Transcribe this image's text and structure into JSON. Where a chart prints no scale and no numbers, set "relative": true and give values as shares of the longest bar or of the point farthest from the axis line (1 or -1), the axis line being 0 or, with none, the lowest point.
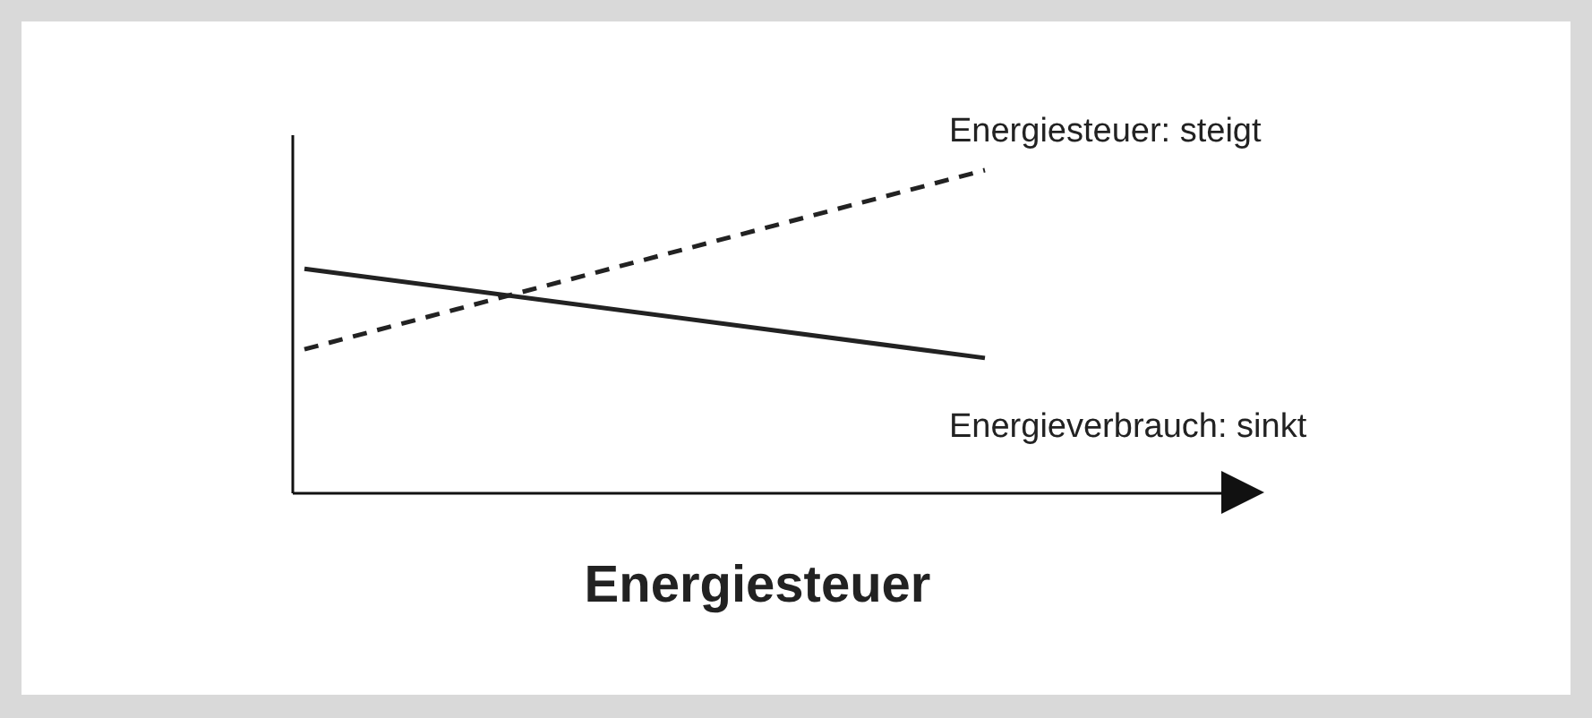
{
  "chart_data": {
    "type": "line",
    "title": "Energiesteuer",
    "relative": true,
    "categories": [
      null,
      null
    ],
    "series": [
      {
        "name": "Energiesteuer: steigt",
        "color": "#222222",
        "line_style": "dashed",
        "values": [
          0.444,
          1
        ]
      },
      {
        "name": "Energieverbrauch: sinkt",
        "color": "#222222",
        "line_style": "solid",
        "values": [
          0.694,
          0.417
        ]
      }
    ]
  }
}
